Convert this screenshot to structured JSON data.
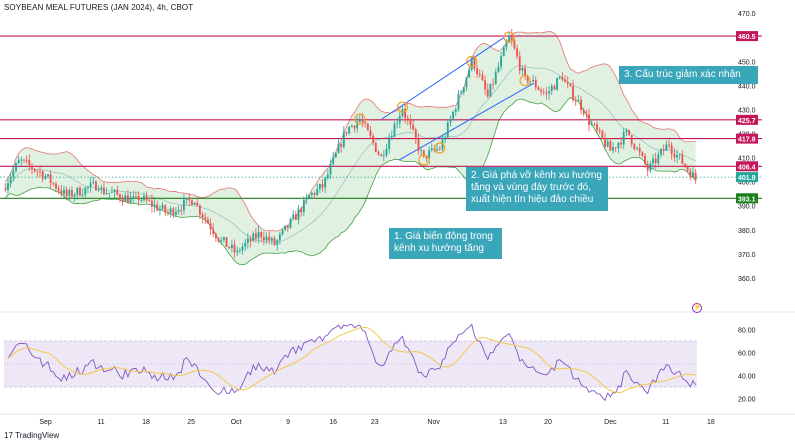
{
  "header": {
    "title": "SOYBEAN MEAL FUTURES (JAN 2024), 4h, CBOT"
  },
  "footer": {
    "logo_mark": "17",
    "logo_text": "TradingView"
  },
  "annotations": [
    {
      "id": "callout-1",
      "text": [
        "1. Giá biến động trong",
        "kênh xu hướng tăng"
      ]
    },
    {
      "id": "callout-2",
      "text": [
        "2. Giá phá vỡ kênh xu hướng",
        "tăng và vùng đáy trước đó,",
        "xuất hiện tín hiệu đảo chiều"
      ]
    },
    {
      "id": "callout-3",
      "text": [
        "3. Cấu trúc giảm xác nhận"
      ]
    }
  ],
  "icons": {
    "alert": "alert-clock-icon"
  },
  "colors": {
    "up": "#26a69a",
    "down": "#ef5350",
    "band_fill": "#c8e6c9",
    "resistance": "#c2185b",
    "support": "#1b7f1b",
    "channel": "#2962ff",
    "rsi_line": "#7e57c2",
    "rsi_ma": "#f2c94c",
    "rsi_fill": "#ede7f6",
    "callout": "#3aa6b9",
    "pivot": "#f0a030"
  },
  "chart_data": [
    {
      "type": "candlestick",
      "title": "SOYBEAN MEAL FUTURES (JAN 2024), 4h, CBOT",
      "ylim": [
        350,
        473
      ],
      "y_ticks": [
        360.0,
        370.0,
        380.0,
        390.0,
        400.0,
        410.0,
        420.0,
        430.0,
        440.0,
        450.0,
        460.0,
        470.0
      ],
      "x_ticks": [
        "Sep",
        "11",
        "18",
        "25",
        "Oct",
        "9",
        "16",
        "23",
        "Nov",
        "13",
        "20",
        "Dec",
        "11",
        "18"
      ],
      "price_levels": [
        {
          "value": 460.5,
          "label": "460.5",
          "color": "#c2185b",
          "style": "solid"
        },
        {
          "value": 425.7,
          "label": "425.7",
          "color": "#c2185b",
          "style": "solid"
        },
        {
          "value": 417.9,
          "label": "417.9",
          "color": "#c2185b",
          "style": "solid"
        },
        {
          "value": 406.4,
          "label": "406.4",
          "color": "#c2185b",
          "style": "solid"
        },
        {
          "value": 401.9,
          "label": "401.9",
          "color": "#26a69a",
          "style": "dotted"
        },
        {
          "value": 393.1,
          "label": "393.1",
          "color": "#1b7f1b",
          "style": "solid"
        }
      ],
      "trend_channel": {
        "lower_start_date": "Oct 28",
        "lower_start": 409,
        "lower_end_date": "Nov 20",
        "lower_end": 441,
        "upper_start_date": "Oct 26",
        "upper_start": 426,
        "upper_end_date": "Nov 14",
        "upper_end": 460
      },
      "swing_points": [
        426,
        431,
        409,
        414,
        450,
        433,
        460,
        442
      ],
      "segments": [
        {
          "open": 397,
          "close": 408,
          "n": 6
        },
        {
          "close": 404,
          "n": 8
        },
        {
          "close": 394,
          "n": 10
        },
        {
          "close": 399,
          "n": 12
        },
        {
          "close": 392,
          "n": 14
        },
        {
          "close": 387,
          "n": 12
        },
        {
          "close": 393,
          "n": 10
        },
        {
          "close": 375,
          "n": 10
        },
        {
          "close": 370,
          "n": 6
        },
        {
          "close": 378,
          "n": 8
        },
        {
          "close": 374,
          "n": 6
        },
        {
          "close": 392,
          "n": 12
        },
        {
          "close": 398,
          "n": 6
        },
        {
          "close": 419,
          "n": 8
        },
        {
          "close": 426,
          "n": 6
        },
        {
          "close": 410,
          "n": 8
        },
        {
          "close": 431,
          "n": 8
        },
        {
          "close": 409,
          "n": 8
        },
        {
          "close": 414,
          "n": 6
        },
        {
          "close": 450,
          "n": 12
        },
        {
          "close": 435,
          "n": 6
        },
        {
          "close": 460,
          "n": 8
        },
        {
          "close": 442,
          "n": 6
        },
        {
          "close": 436,
          "n": 8
        },
        {
          "close": 444,
          "n": 6
        },
        {
          "close": 430,
          "n": 8
        },
        {
          "close": 413,
          "n": 10
        },
        {
          "close": 420,
          "n": 6
        },
        {
          "close": 405,
          "n": 8
        },
        {
          "close": 416,
          "n": 8
        },
        {
          "close": 401,
          "n": 10
        }
      ]
    },
    {
      "type": "line",
      "title": "RSI",
      "ylim": [
        10,
        90
      ],
      "y_ticks": [
        20.0,
        40.0,
        60.0,
        80.0
      ],
      "bands": [
        30,
        70
      ]
    }
  ]
}
